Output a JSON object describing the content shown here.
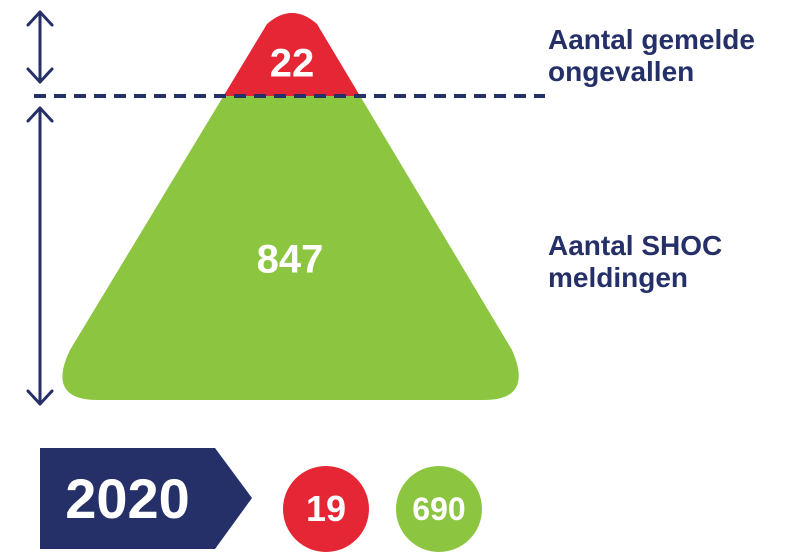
{
  "triangle": {
    "top_value": "22",
    "bottom_value": "847",
    "top_label": [
      "Aantal gemelde",
      "ongevallen"
    ],
    "bottom_label": [
      "Aantal SHOC",
      "meldingen"
    ]
  },
  "comparison": {
    "year": "2020",
    "accidents_value": "19",
    "shoc_value": "690"
  },
  "colors": {
    "navy": "#263068",
    "red": "#e52634",
    "green": "#8cc540"
  }
}
